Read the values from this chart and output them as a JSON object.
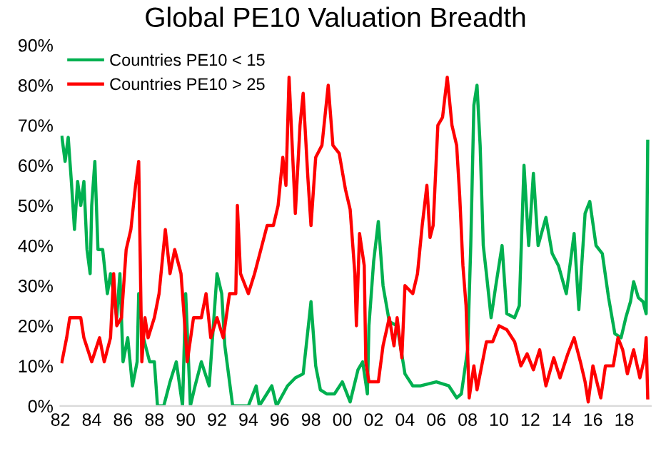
{
  "chart_data": {
    "type": "line",
    "title": "Global PE10 Valuation Breadth",
    "series": [
      {
        "name": "Countries PE10 < 15",
        "color": "#00b050",
        "x": [
          1982.1,
          1982.3,
          1982.5,
          1982.7,
          1982.9,
          1983.1,
          1983.3,
          1983.5,
          1983.7,
          1983.9,
          1984.0,
          1984.2,
          1984.4,
          1984.7,
          1985.0,
          1985.2,
          1985.4,
          1985.6,
          1985.8,
          1986.0,
          1986.3,
          1986.6,
          1986.9,
          1987.0,
          1987.3,
          1987.7,
          1988.0,
          1988.2,
          1988.6,
          1989.0,
          1989.4,
          1989.8,
          1990.0,
          1990.3,
          1990.6,
          1991.0,
          1991.5,
          1992.0,
          1992.3,
          1992.5,
          1993.0,
          1994.0,
          1994.5,
          1994.7,
          1995.5,
          1995.8,
          1996.5,
          1997.0,
          1997.5,
          1998.0,
          1998.3,
          1998.6,
          1999.0,
          1999.5,
          2000.0,
          2000.5,
          2001.0,
          2001.3,
          2001.6,
          2001.7,
          2002.0,
          2002.3,
          2002.6,
          2003.0,
          2003.5,
          2004.0,
          2004.5,
          2005.0,
          2006.0,
          2006.8,
          2007.3,
          2007.6,
          2008.0,
          2008.2,
          2008.4,
          2008.6,
          2008.8,
          2009.0,
          2009.2,
          2009.5,
          2009.8,
          2010.2,
          2010.5,
          2011.0,
          2011.3,
          2011.6,
          2011.9,
          2012.2,
          2012.5,
          2013.0,
          2013.4,
          2013.8,
          2014.3,
          2014.8,
          2015.1,
          2015.5,
          2015.8,
          2016.2,
          2016.6,
          2017.0,
          2017.4,
          2017.8,
          2018.1,
          2018.4,
          2018.6,
          2018.9,
          2019.2,
          2019.4,
          2019.5
        ],
        "values": [
          67,
          61,
          67,
          56,
          44,
          56,
          50,
          56,
          39,
          33,
          50,
          61,
          39,
          39,
          28,
          33,
          28,
          22,
          33,
          11,
          17,
          5,
          11,
          28,
          17,
          11,
          11,
          0,
          0,
          6,
          11,
          0,
          28,
          0,
          5,
          11,
          5,
          33,
          28,
          15,
          0,
          0,
          5,
          0,
          5,
          0,
          5,
          7,
          8,
          26,
          10,
          4,
          3,
          3,
          6,
          1,
          9,
          11,
          3,
          20,
          36,
          46,
          30,
          21,
          20,
          8,
          5,
          5,
          6,
          5,
          2,
          3,
          14,
          40,
          75,
          80,
          65,
          40,
          33,
          22,
          30,
          40,
          23,
          22,
          25,
          60,
          40,
          58,
          40,
          47,
          38,
          35,
          28,
          43,
          24,
          48,
          51,
          40,
          38,
          27,
          18,
          17,
          22,
          26,
          31,
          27,
          26,
          23,
          66
        ]
      },
      {
        "name": "Countries PE10 > 25",
        "color": "#ff0000",
        "x": [
          1982.1,
          1982.4,
          1982.6,
          1983.3,
          1983.5,
          1984.0,
          1984.5,
          1984.8,
          1985.2,
          1985.4,
          1985.6,
          1985.9,
          1986.2,
          1986.5,
          1986.8,
          1987.0,
          1987.2,
          1987.4,
          1987.6,
          1988.0,
          1988.3,
          1988.7,
          1989.0,
          1989.3,
          1989.7,
          1990.0,
          1990.1,
          1990.5,
          1991.0,
          1991.3,
          1991.6,
          1992.0,
          1992.4,
          1992.8,
          1993.2,
          1993.3,
          1993.5,
          1994.0,
          1994.4,
          1994.8,
          1995.2,
          1995.6,
          1995.9,
          1996.2,
          1996.4,
          1996.6,
          1996.8,
          1997.0,
          1997.3,
          1997.5,
          1997.8,
          1998.0,
          1998.3,
          1998.7,
          1999.1,
          1999.4,
          1999.8,
          2000.2,
          2000.5,
          2000.8,
          2000.9,
          2001.1,
          2001.4,
          2001.5,
          2001.7,
          2002.0,
          2002.3,
          2002.6,
          2003.0,
          2003.3,
          2003.5,
          2003.8,
          2004.0,
          2004.5,
          2004.8,
          2005.1,
          2005.4,
          2005.6,
          2005.8,
          2006.1,
          2006.4,
          2006.7,
          2007.0,
          2007.3,
          2007.5,
          2007.7,
          2007.9,
          2008.1,
          2008.4,
          2008.6,
          2008.9,
          2009.2,
          2009.6,
          2010.0,
          2010.5,
          2011.0,
          2011.4,
          2011.8,
          2012.2,
          2012.6,
          2013.0,
          2013.5,
          2013.9,
          2014.4,
          2014.8,
          2015.2,
          2015.5,
          2015.7,
          2016.0,
          2016.5,
          2016.8,
          2017.3,
          2017.6,
          2017.9,
          2018.2,
          2018.6,
          2019.0,
          2019.3,
          2019.4,
          2019.5
        ],
        "values": [
          11,
          17,
          22,
          22,
          17,
          11,
          17,
          11,
          17,
          33,
          20,
          22,
          39,
          44,
          55,
          61,
          11,
          22,
          17,
          22,
          28,
          44,
          33,
          39,
          33,
          17,
          11,
          22,
          22,
          28,
          17,
          22,
          17,
          28,
          28,
          50,
          33,
          28,
          33,
          39,
          45,
          45,
          50,
          62,
          55,
          82,
          65,
          48,
          70,
          78,
          57,
          45,
          62,
          65,
          80,
          65,
          63,
          54,
          49,
          33,
          20,
          43,
          35,
          11,
          6,
          6,
          6,
          15,
          22,
          15,
          22,
          12,
          30,
          28,
          33,
          45,
          55,
          42,
          45,
          70,
          72,
          82,
          70,
          65,
          52,
          35,
          25,
          2,
          10,
          4,
          10,
          16,
          16,
          20,
          19,
          16,
          10,
          13,
          9,
          14,
          5,
          12,
          7,
          13,
          17,
          11,
          6,
          1,
          10,
          2,
          10,
          10,
          17,
          14,
          8,
          14,
          7,
          12,
          17,
          2
        ]
      }
    ],
    "xlim": [
      1982,
      2019.7
    ],
    "xticks": [
      {
        "value": 1982,
        "label": "82"
      },
      {
        "value": 1984,
        "label": "84"
      },
      {
        "value": 1986,
        "label": "86"
      },
      {
        "value": 1988,
        "label": "88"
      },
      {
        "value": 1990,
        "label": "90"
      },
      {
        "value": 1992,
        "label": "92"
      },
      {
        "value": 1994,
        "label": "94"
      },
      {
        "value": 1996,
        "label": "96"
      },
      {
        "value": 1998,
        "label": "98"
      },
      {
        "value": 2000,
        "label": "00"
      },
      {
        "value": 2002,
        "label": "02"
      },
      {
        "value": 2004,
        "label": "04"
      },
      {
        "value": 2006,
        "label": "06"
      },
      {
        "value": 2008,
        "label": "08"
      },
      {
        "value": 2010,
        "label": "10"
      },
      {
        "value": 2012,
        "label": "12"
      },
      {
        "value": 2014,
        "label": "14"
      },
      {
        "value": 2016,
        "label": "16"
      },
      {
        "value": 2018,
        "label": "18"
      }
    ],
    "ylim": [
      0,
      90
    ],
    "yticks": [
      {
        "value": 0,
        "label": "0%"
      },
      {
        "value": 10,
        "label": "10%"
      },
      {
        "value": 20,
        "label": "20%"
      },
      {
        "value": 30,
        "label": "30%"
      },
      {
        "value": 40,
        "label": "40%"
      },
      {
        "value": 50,
        "label": "50%"
      },
      {
        "value": 60,
        "label": "60%"
      },
      {
        "value": 70,
        "label": "70%"
      },
      {
        "value": 80,
        "label": "80%"
      },
      {
        "value": 90,
        "label": "90%"
      }
    ],
    "grid": false,
    "legend": "top left",
    "marker": "none",
    "line_style": "solid"
  }
}
